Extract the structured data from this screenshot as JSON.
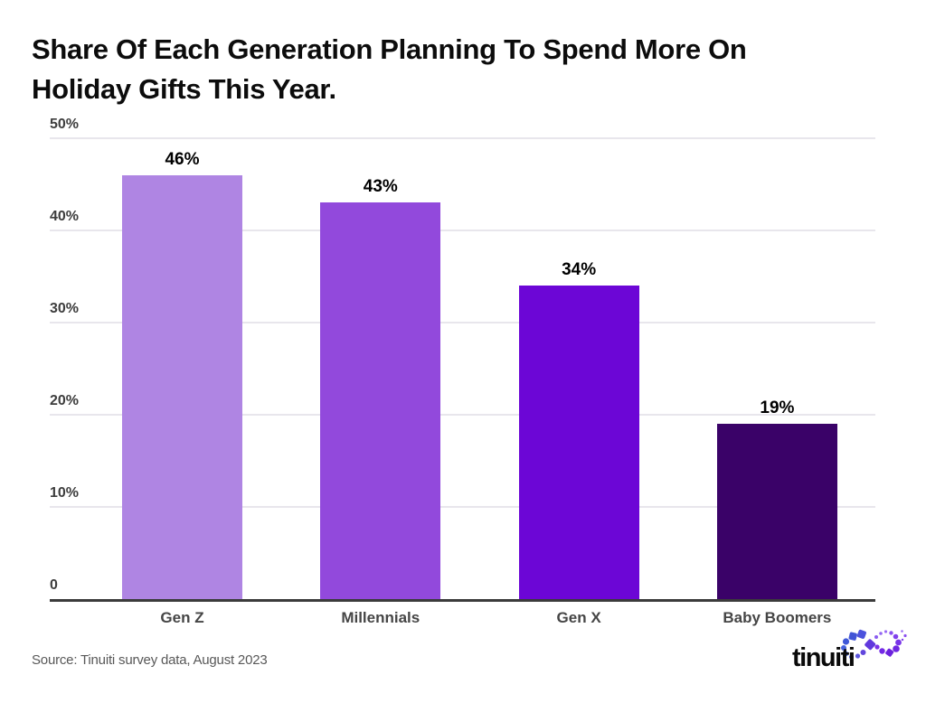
{
  "title": {
    "line1": "Share Of Each Generation Planning To Spend More On",
    "line2": "Holiday Gifts This Year."
  },
  "source_note": "Source: Tinuiti survey data, August 2023",
  "logo": {
    "text": "tinuiti",
    "mark": "infinity-dots",
    "mark_colors": [
      "#4154d6",
      "#6038dd",
      "#7a2fe6"
    ]
  },
  "chart_data": {
    "type": "bar",
    "title": "Share Of Each Generation Planning To Spend More On Holiday Gifts This Year.",
    "categories": [
      "Gen Z",
      "Millennials",
      "Gen X",
      "Baby Boomers"
    ],
    "values": [
      46,
      43,
      34,
      19
    ],
    "value_labels": [
      "46%",
      "43%",
      "34%",
      "19%"
    ],
    "bar_colors": [
      "#AF85E3",
      "#9249DC",
      "#6C06D6",
      "#3A0268"
    ],
    "xlabel": "",
    "ylabel": "",
    "ylim": [
      0,
      50
    ],
    "yticks": [
      0,
      10,
      20,
      30,
      40,
      50
    ],
    "ytick_labels": [
      "0",
      "10%",
      "20%",
      "30%",
      "40%",
      "50%"
    ],
    "grid": true,
    "legend": false,
    "axis_color": "#3b3b3b",
    "grid_color": "#e8e6ec"
  }
}
